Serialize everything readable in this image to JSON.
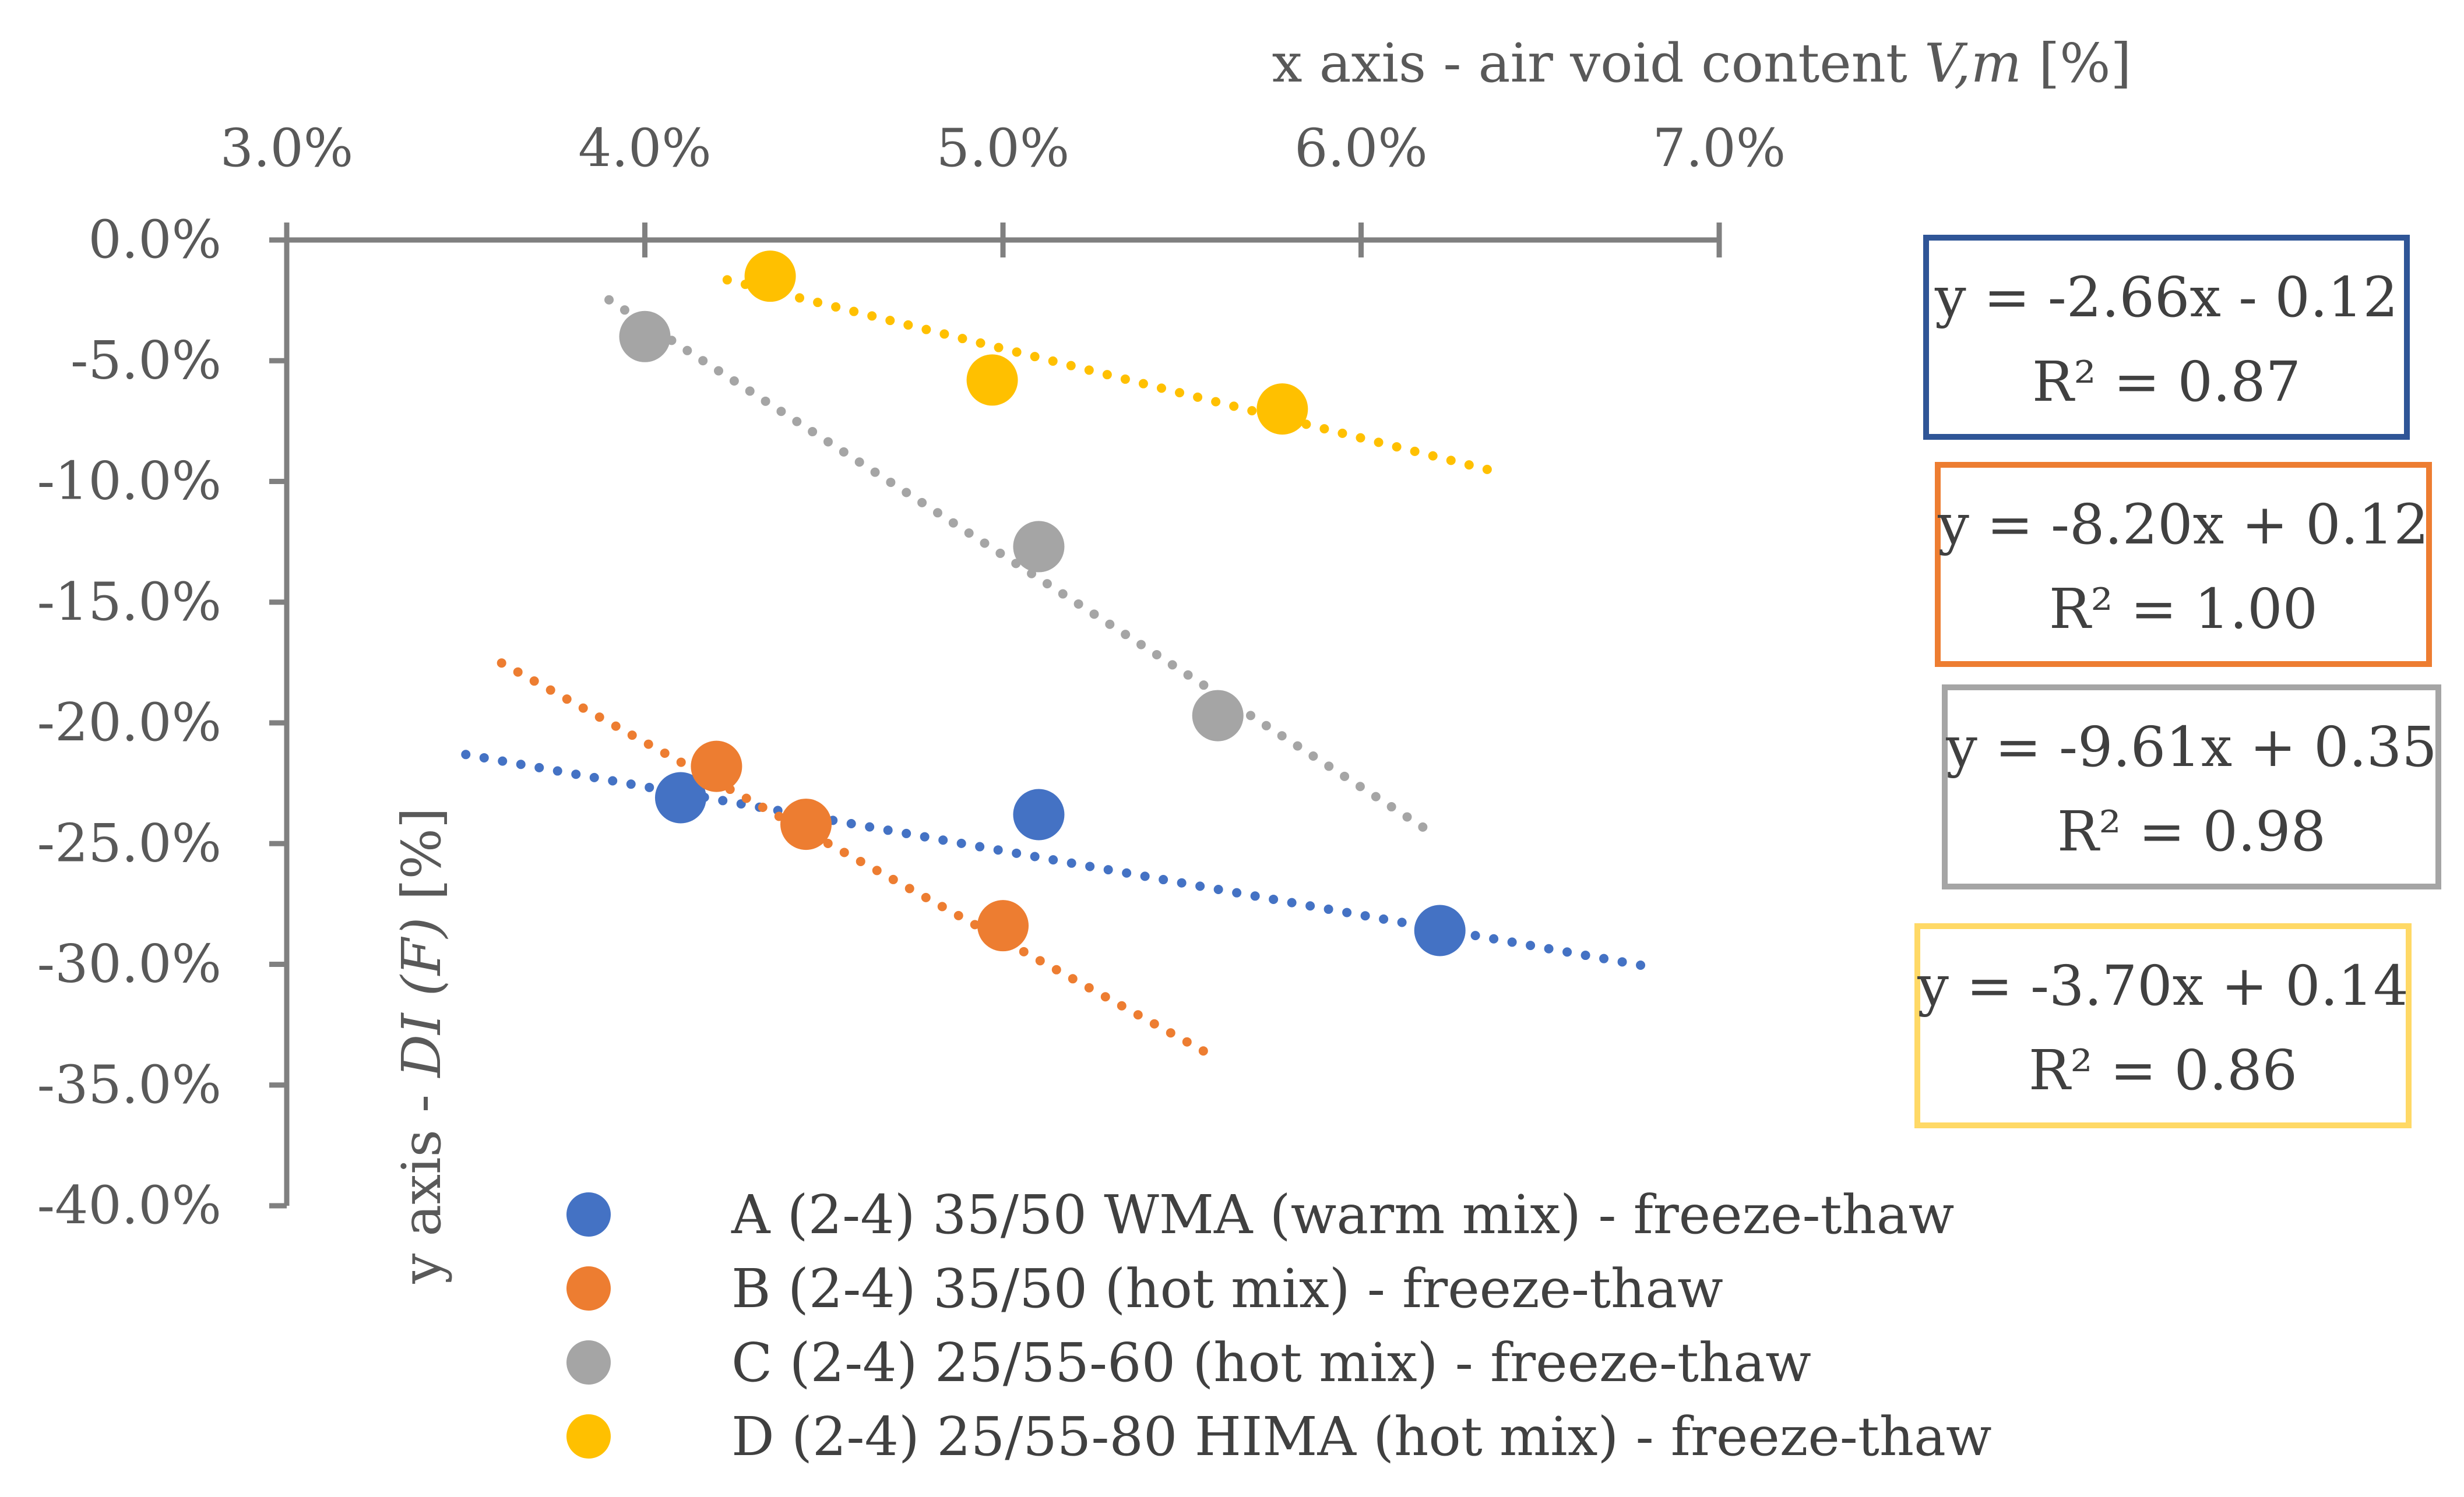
{
  "chart_data": {
    "type": "scatter",
    "title": "",
    "xlabel": {
      "prefix": "x axis - air void content ",
      "italic": "V,m",
      "suffix": " [%]"
    },
    "ylabel": {
      "prefix": "y axis - ",
      "italic": "DI (F)",
      "suffix": " [%]"
    },
    "x_axis_position": "top",
    "xlim": [
      0.03,
      0.07
    ],
    "ylim": [
      -0.4,
      0.0
    ],
    "x_ticks": [
      0.03,
      0.04,
      0.05,
      0.06,
      0.07
    ],
    "x_tick_labels": [
      "3.0%",
      "4.0%",
      "5.0%",
      "6.0%",
      "7.0%"
    ],
    "y_ticks": [
      0.0,
      -0.05,
      -0.1,
      -0.15,
      -0.2,
      -0.25,
      -0.3,
      -0.35,
      -0.4
    ],
    "y_tick_labels": [
      "0.0%",
      "-5.0%",
      "-10.0%",
      "-15.0%",
      "-20.0%",
      "-25.0%",
      "-30.0%",
      "-35.0%",
      "-40.0%"
    ],
    "grid": false,
    "legend_position": "bottom",
    "series": [
      {
        "name": "A (2-4) 35/50 WMA (warm mix) - freeze-thaw",
        "color": "#4472C4",
        "points": [
          [
            0.041,
            -0.231
          ],
          [
            0.051,
            -0.238
          ],
          [
            0.0622,
            -0.286
          ]
        ],
        "trendline": {
          "slope": -2.66,
          "intercept": -0.12,
          "x_start": 0.035,
          "x_end": 0.068
        },
        "equation": "y = -2.66x - 0.12",
        "r2": "R² = 0.87"
      },
      {
        "name": "B (2-4) 35/50 (hot mix) - freeze-thaw",
        "color": "#ED7D31",
        "points": [
          [
            0.042,
            -0.218
          ],
          [
            0.0445,
            -0.242
          ],
          [
            0.05,
            -0.284
          ]
        ],
        "trendline": {
          "slope": -8.2,
          "intercept": 0.12,
          "x_start": 0.036,
          "x_end": 0.056
        },
        "equation": "y = -8.20x + 0.12",
        "r2": "R² = 1.00"
      },
      {
        "name": "C (2-4) 25/55-60 (hot mix) - freeze-thaw",
        "color": "#A5A5A5",
        "points": [
          [
            0.04,
            -0.04
          ],
          [
            0.051,
            -0.127
          ],
          [
            0.056,
            -0.197
          ]
        ],
        "trendline": {
          "slope": -9.61,
          "intercept": 0.35,
          "x_start": 0.039,
          "x_end": 0.062
        },
        "equation": "y = -9.61x + 0.35",
        "r2": "R² = 0.98"
      },
      {
        "name": "D (2-4) 25/55-80 HIMA (hot mix) - freeze-thaw",
        "color": "#FFC000",
        "points": [
          [
            0.0435,
            -0.015
          ],
          [
            0.0497,
            -0.058
          ],
          [
            0.0578,
            -0.07
          ]
        ],
        "trendline": {
          "slope": -3.7,
          "intercept": 0.14,
          "x_start": 0.0423,
          "x_end": 0.064
        },
        "equation": "y = -3.70x + 0.14",
        "r2": "R² = 0.86"
      }
    ]
  },
  "equation_boxes": [
    {
      "equation": "y = -2.66x - 0.12",
      "r2": "R² = 0.87",
      "border_color": "#2F5597"
    },
    {
      "equation": "y = -8.20x + 0.12",
      "r2": "R² = 1.00",
      "border_color": "#ED7D31"
    },
    {
      "equation": "y = -9.61x + 0.35",
      "r2": "R² = 0.98",
      "border_color": "#A5A5A5"
    },
    {
      "equation": "y = -3.70x + 0.14",
      "r2": "R² = 0.86",
      "border_color": "#FFD966"
    }
  ]
}
